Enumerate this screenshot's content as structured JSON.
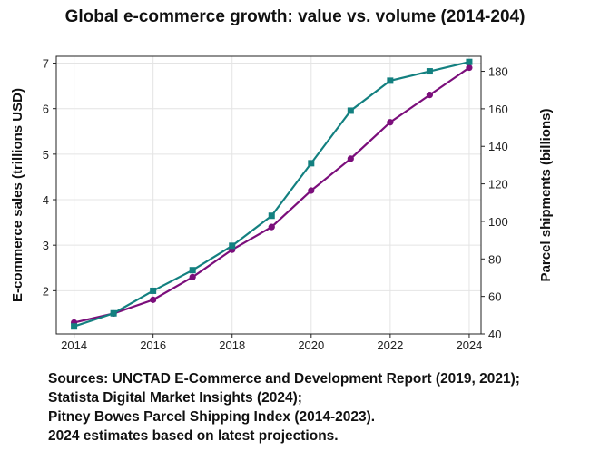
{
  "title": "Global e-commerce growth: value vs. volume (2014-204)",
  "chart_data": {
    "type": "line",
    "title": "Global e-commerce growth: value vs. volume (2014-204)",
    "ylabel": "E-commerce sales (trillions USD)",
    "y2label": "Parcel shipments (billions)",
    "xlabel": "",
    "x": [
      2014,
      2015,
      2016,
      2017,
      2018,
      2019,
      2020,
      2021,
      2022,
      2023,
      2024
    ],
    "xticks": [
      2014,
      2016,
      2018,
      2020,
      2022,
      2024
    ],
    "yticks": [
      2,
      3,
      4,
      5,
      6,
      7
    ],
    "y2ticks": [
      40,
      60,
      80,
      100,
      120,
      140,
      160,
      180
    ],
    "ylim": [
      1.05,
      7.15
    ],
    "y2lim": [
      40,
      188
    ],
    "grid": true,
    "series": [
      {
        "axis": "left",
        "color": "#7b0e7b",
        "marker": "circle",
        "values": [
          1.3,
          1.5,
          1.8,
          2.3,
          2.9,
          3.4,
          4.2,
          4.9,
          5.7,
          6.3,
          6.9
        ]
      },
      {
        "axis": "right",
        "color": "#138080",
        "marker": "square",
        "values": [
          44,
          51,
          63,
          74,
          87,
          103,
          131,
          159,
          175,
          180,
          185
        ]
      }
    ]
  },
  "sources": [
    "Sources: UNCTAD E-Commerce and Development Report (2019, 2021);",
    "Statista Digital Market Insights (2024);",
    "Pitney Bowes Parcel Shipping Index (2014-2023).",
    "2024 estimates based on latest projections."
  ]
}
